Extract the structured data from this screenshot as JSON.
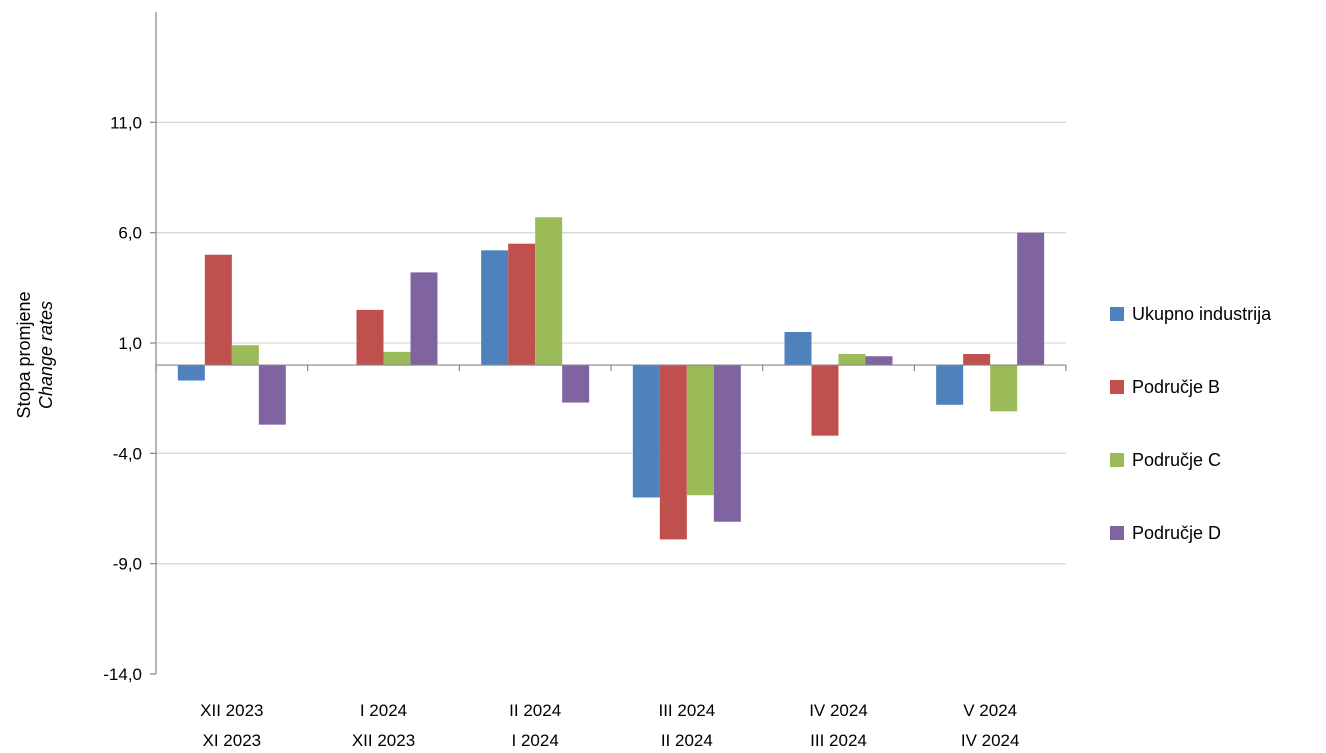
{
  "chart_data": {
    "type": "bar",
    "ylabel": "Stopa promjene",
    "ylabel_en": "Change rates",
    "ylim": [
      -14.0,
      16.0
    ],
    "yticks": [
      "11,0",
      "6,0",
      "1,0",
      "-4,0",
      "-9,0",
      "-14,0"
    ],
    "ytick_values": [
      11,
      6,
      1,
      -4,
      -9,
      -14
    ],
    "categories": [
      {
        "line1": "XII 2023",
        "line2": "XI 2023"
      },
      {
        "line1": "I 2024",
        "line2": "XII 2023"
      },
      {
        "line1": "II 2024",
        "line2": "I 2024"
      },
      {
        "line1": "III 2024",
        "line2": "II 2024"
      },
      {
        "line1": "IV 2024",
        "line2": "III 2024"
      },
      {
        "line1": "V 2024",
        "line2": "IV 2024"
      }
    ],
    "series": [
      {
        "name": "Ukupno industrija",
        "color": "#4f81bd",
        "values": [
          -0.7,
          0.0,
          5.2,
          -6.0,
          1.5,
          -1.8
        ]
      },
      {
        "name": "Područje B",
        "color": "#c0504d",
        "values": [
          5.0,
          2.5,
          5.5,
          -7.9,
          -3.2,
          0.5
        ]
      },
      {
        "name": "Područje C",
        "color": "#9bbb59",
        "values": [
          0.9,
          0.6,
          6.7,
          -5.9,
          0.5,
          -2.1
        ]
      },
      {
        "name": "Područje D",
        "color": "#8064a2",
        "values": [
          -2.7,
          4.2,
          -1.7,
          -7.1,
          0.4,
          6.0
        ]
      }
    ],
    "grid": true,
    "legend_position": "right"
  }
}
